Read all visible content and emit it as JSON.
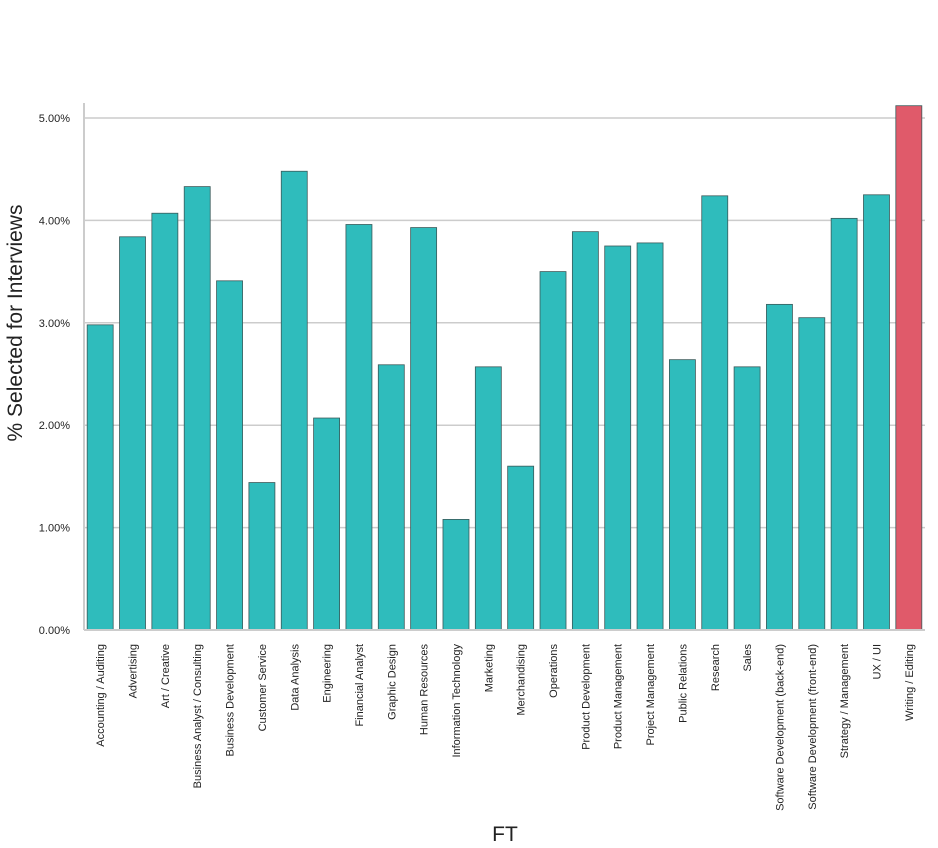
{
  "chart_data": {
    "type": "bar",
    "title": "",
    "xlabel": "FT",
    "ylabel": "% Selected for Interviews",
    "ylim": [
      0,
      5.3
    ],
    "yticks": [
      0,
      1,
      2,
      3,
      4,
      5
    ],
    "ytick_labels": [
      "0.00%",
      "1.00%",
      "2.00%",
      "3.00%",
      "4.00%",
      "5.00%"
    ],
    "grid": "horizontal",
    "colors": {
      "default": "#2fbcbc",
      "highlight": "#e05a6a",
      "grid": "#cccccc"
    },
    "highlight_category": "Writing / Editing",
    "categories": [
      "Accounting / Auditing",
      "Advertising",
      "Art / Creative",
      "Business Analyst / Consulting",
      "Business Development",
      "Customer Service",
      "Data Analysis",
      "Engineering",
      "Financial Analyst",
      "Graphic Design",
      "Human Resources",
      "Information Technology",
      "Marketing",
      "Merchandising",
      "Operations",
      "Product Development",
      "Product Management",
      "Project Management",
      "Public Relations",
      "Research",
      "Sales",
      "Software Development (back-end)",
      "Software Development (front-end)",
      "Strategy / Management",
      "UX / UI",
      "Writing / Editing"
    ],
    "values": [
      2.98,
      3.84,
      4.07,
      4.33,
      3.41,
      1.44,
      4.48,
      2.07,
      3.96,
      2.59,
      3.93,
      1.08,
      2.57,
      1.6,
      3.5,
      3.89,
      3.75,
      3.78,
      2.64,
      4.24,
      2.57,
      3.18,
      3.05,
      4.02,
      4.25,
      5.12
    ]
  }
}
